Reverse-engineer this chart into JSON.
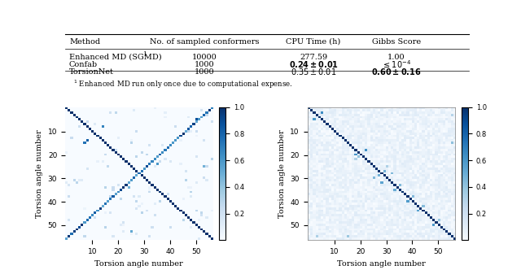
{
  "table_data": {
    "headers": [
      "Method",
      "No. of sampled conformers",
      "CPU Time (h)",
      "Gibbs Score"
    ],
    "rows": [
      [
        "Enhanced MD (SGMD)",
        "10000",
        "277.59",
        "1.00"
      ],
      [
        "Confab",
        "1000",
        "0.24_bold",
        "leq_bold"
      ],
      [
        "TorsionNet",
        "1000",
        "0.35_normal",
        "0.60_bold"
      ]
    ],
    "footnote": "1 Enhanced MD run only once due to computational expense."
  },
  "heatmap_size": 57,
  "colormap": "Blues",
  "vmin": 0.0,
  "vmax": 1.0,
  "ylabel": "Torsion angle number",
  "xlabel": "Torsion angle number",
  "yticks": [
    10,
    20,
    30,
    40,
    50
  ],
  "xticks": [
    10,
    20,
    30,
    40,
    50
  ],
  "cbar_ticks": [
    0.2,
    0.4,
    0.6,
    0.8,
    1.0
  ],
  "background_color": "#ffffff"
}
